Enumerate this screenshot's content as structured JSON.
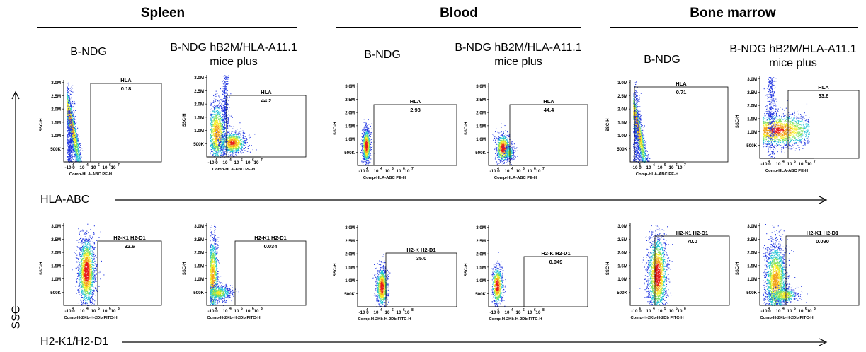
{
  "tissues": [
    {
      "name": "Spleen"
    },
    {
      "name": "Blood"
    },
    {
      "name": "Bone marrow"
    }
  ],
  "group_titles": [
    {
      "line1": "B-NDG",
      "line2": ""
    },
    {
      "line1": "B-NDG hB2M/HLA-A11.1",
      "line2": "mice plus"
    },
    {
      "line1": "B-NDG",
      "line2": ""
    },
    {
      "line1": "B-NDG hB2M/HLA-A11.1",
      "line2": "mice plus"
    },
    {
      "line1": "B-NDG",
      "line2": ""
    },
    {
      "line1": "B-NDG hB2M/HLA-A11.1",
      "line2": "mice plus"
    }
  ],
  "row_labels": {
    "row1": "HLA-ABC",
    "row2": "H2-K1/H2-D1",
    "y": "SSC"
  },
  "chart_data": [
    {
      "type": "scatter",
      "tissue": "Spleen",
      "mouse": "B-NDG",
      "xlabel": "Comp-HLA-ABC  PE-H",
      "ylabel": "SSC-H",
      "y_ticks": [
        "500K",
        "1.0M",
        "1.5M",
        "2.0M",
        "2.5M",
        "3.0M"
      ],
      "gate_label": "HLA",
      "gate_value": "0.18",
      "ylim": [
        0,
        3100000
      ]
    },
    {
      "type": "scatter",
      "tissue": "Spleen",
      "mouse": "B-NDG hB2M/HLA-A11.1 mice plus",
      "xlabel": "Comp-HLA-ABC  PE-H",
      "ylabel": "SSC-H",
      "y_ticks": [
        "500K",
        "1.0M",
        "1.5M",
        "2.0M",
        "2.5M",
        "3.0M"
      ],
      "gate_label": "HLA",
      "gate_value": "44.2",
      "ylim": [
        0,
        3100000
      ]
    },
    {
      "type": "scatter",
      "tissue": "Blood",
      "mouse": "B-NDG",
      "xlabel": "Comp-HLA-ABC  PE-H",
      "ylabel": "SSC-H",
      "y_ticks": [
        "500K",
        "1.0M",
        "1.5M",
        "2.0M",
        "2.5M",
        "3.0M"
      ],
      "gate_label": "HLA",
      "gate_value": "2.98",
      "ylim": [
        0,
        3100000
      ]
    },
    {
      "type": "scatter",
      "tissue": "Blood",
      "mouse": "B-NDG hB2M/HLA-A11.1 mice plus",
      "xlabel": "Comp-HLA-ABC  PE-H",
      "ylabel": "SSC-H",
      "y_ticks": [
        "500K",
        "1.0M",
        "1.5M",
        "2.0M",
        "2.5M",
        "3.0M"
      ],
      "gate_label": "HLA",
      "gate_value": "44.4",
      "ylim": [
        0,
        3100000
      ]
    },
    {
      "type": "scatter",
      "tissue": "Bone marrow",
      "mouse": "B-NDG",
      "xlabel": "Comp-HLA-ABC  PE-H",
      "ylabel": "SSC-H",
      "y_ticks": [
        "500K",
        "1.0M",
        "1.5M",
        "2.0M",
        "2.5M",
        "3.0M"
      ],
      "gate_label": "HLA",
      "gate_value": "0.71",
      "ylim": [
        0,
        3100000
      ]
    },
    {
      "type": "scatter",
      "tissue": "Bone marrow",
      "mouse": "B-NDG hB2M/HLA-A11.1 mice plus",
      "xlabel": "Comp-HLA-ABC  PE-H",
      "ylabel": "SSC-H",
      "y_ticks": [
        "500K",
        "1.0M",
        "1.5M",
        "2.0M",
        "2.5M",
        "3.0M"
      ],
      "gate_label": "HLA",
      "gate_value": "33.6",
      "ylim": [
        0,
        3100000
      ]
    },
    {
      "type": "scatter",
      "tissue": "Spleen",
      "mouse": "B-NDG",
      "xlabel": "Comp-H-2Kb-H-2Db  FITC-H",
      "ylabel": "SSC-H",
      "y_ticks": [
        "500K",
        "1.0M",
        "1.5M",
        "2.0M",
        "2.5M",
        "3.0M"
      ],
      "gate_label": "H2-K1 H2-D1",
      "gate_value": "32.6",
      "ylim": [
        0,
        3100000
      ]
    },
    {
      "type": "scatter",
      "tissue": "Spleen",
      "mouse": "B-NDG hB2M/HLA-A11.1 mice plus",
      "xlabel": "Comp-H-2Kb-H-2Db  FITC-H",
      "ylabel": "SSC-H",
      "y_ticks": [
        "500K",
        "1.0M",
        "1.5M",
        "2.0M",
        "2.5M",
        "3.0M"
      ],
      "gate_label": "H2-K1 H2-D1",
      "gate_value": "0.034",
      "ylim": [
        0,
        3100000
      ]
    },
    {
      "type": "scatter",
      "tissue": "Blood",
      "mouse": "B-NDG",
      "xlabel": "Comp-H-2Kb-H-2Db  FITC-H",
      "ylabel": "SSC-H",
      "y_ticks": [
        "500K",
        "1.0M",
        "1.5M",
        "2.0M",
        "2.5M",
        "3.0M"
      ],
      "gate_label": "H2-K H2-D1",
      "gate_value": "35.0",
      "ylim": [
        0,
        3100000
      ]
    },
    {
      "type": "scatter",
      "tissue": "Blood",
      "mouse": "B-NDG hB2M/HLA-A11.1 mice plus",
      "xlabel": "Comp-H-2Kb-H-2Db  FITC-H",
      "ylabel": "SSC-H",
      "y_ticks": [
        "500K",
        "1.0M",
        "1.5M",
        "2.0M",
        "2.5M",
        "3.0M"
      ],
      "gate_label": "H2-K H2-D1",
      "gate_value": "0.049",
      "ylim": [
        0,
        3100000
      ]
    },
    {
      "type": "scatter",
      "tissue": "Bone marrow",
      "mouse": "B-NDG",
      "xlabel": "Comp-H-2Kb-H-2Db  FITC-H",
      "ylabel": "SSC-H",
      "y_ticks": [
        "500K",
        "1.0M",
        "1.5M",
        "2.0M",
        "2.5M",
        "3.0M"
      ],
      "gate_label": "H2-K1 H2-D1",
      "gate_value": "70.0",
      "ylim": [
        0,
        3100000
      ]
    },
    {
      "type": "scatter",
      "tissue": "Bone marrow",
      "mouse": "B-NDG hB2M/HLA-A11.1 mice plus",
      "xlabel": "Comp-H-2Kb-H-2Db  FITC-H",
      "ylabel": "SSC-H",
      "y_ticks": [
        "500K",
        "1.0M",
        "1.5M",
        "2.0M",
        "2.5M",
        "3.0M"
      ],
      "gate_label": "H2-K1 H2-D1",
      "gate_value": "0.090",
      "ylim": [
        0,
        3100000
      ]
    }
  ]
}
